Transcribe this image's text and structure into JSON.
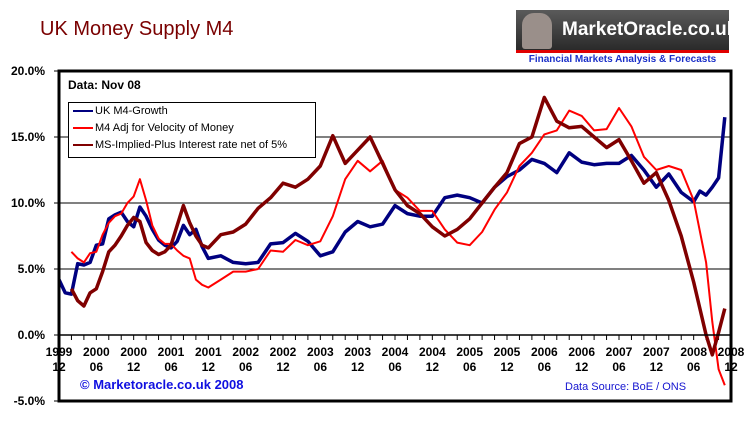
{
  "header": {
    "title": "UK Money Supply M4",
    "logo_text": "MarketOracle.co.uk",
    "logo_tagline": "Financial Markets Analysis & Forecasts"
  },
  "annotations": {
    "data_note": "Data: Nov 08",
    "copyright": "© Marketoracle.co.uk 2008",
    "source": "Data Source: BoE / ONS"
  },
  "colors": {
    "uk_m4": "#000080",
    "m4_adj": "#ff0000",
    "ms_implied": "#800000",
    "title": "#7a0000"
  },
  "chart_data": {
    "type": "line",
    "title": "UK Money Supply M4",
    "ylim": [
      -5,
      20
    ],
    "yticks": [
      "20.0%",
      "15.0%",
      "10.0%",
      "5.0%",
      "0.0%",
      "-5.0%"
    ],
    "ytick_values": [
      20,
      15,
      10,
      5,
      0,
      -5
    ],
    "xrange_months": [
      0,
      108
    ],
    "xticks": [
      {
        "top": "1999",
        "bottom": "12",
        "m": 0
      },
      {
        "top": "2000",
        "bottom": "06",
        "m": 6
      },
      {
        "top": "2000",
        "bottom": "12",
        "m": 12
      },
      {
        "top": "2001",
        "bottom": "06",
        "m": 18
      },
      {
        "top": "2001",
        "bottom": "12",
        "m": 24
      },
      {
        "top": "2002",
        "bottom": "06",
        "m": 30
      },
      {
        "top": "2002",
        "bottom": "12",
        "m": 36
      },
      {
        "top": "2003",
        "bottom": "06",
        "m": 42
      },
      {
        "top": "2003",
        "bottom": "12",
        "m": 48
      },
      {
        "top": "2004",
        "bottom": "06",
        "m": 54
      },
      {
        "top": "2004",
        "bottom": "12",
        "m": 60
      },
      {
        "top": "2005",
        "bottom": "06",
        "m": 66
      },
      {
        "top": "2005",
        "bottom": "12",
        "m": 72
      },
      {
        "top": "2006",
        "bottom": "06",
        "m": 78
      },
      {
        "top": "2006",
        "bottom": "12",
        "m": 84
      },
      {
        "top": "2007",
        "bottom": "06",
        "m": 90
      },
      {
        "top": "2007",
        "bottom": "12",
        "m": 96
      },
      {
        "top": "2008",
        "bottom": "06",
        "m": 102
      },
      {
        "top": "2008",
        "bottom": "12",
        "m": 108
      }
    ],
    "grid": true,
    "legend_position": "top-left",
    "series": [
      {
        "name": "UK M4-Growth",
        "color": "#000080",
        "x": [
          0,
          1,
          2,
          3,
          4,
          5,
          6,
          7,
          8,
          9,
          10,
          11,
          12,
          13,
          14,
          15,
          16,
          17,
          18,
          19,
          20,
          21,
          22,
          23,
          24,
          26,
          28,
          30,
          32,
          34,
          36,
          38,
          40,
          42,
          44,
          46,
          48,
          50,
          52,
          54,
          56,
          58,
          60,
          62,
          64,
          66,
          68,
          70,
          72,
          74,
          76,
          78,
          80,
          82,
          84,
          86,
          88,
          90,
          92,
          94,
          96,
          98,
          100,
          102,
          103,
          104,
          105,
          106,
          107
        ],
        "y": [
          4.2,
          3.2,
          3.1,
          5.4,
          5.3,
          5.5,
          6.8,
          6.9,
          8.8,
          9.1,
          9.3,
          8.6,
          8.2,
          9.7,
          9.0,
          8.0,
          7.2,
          6.8,
          6.6,
          7.1,
          8.3,
          7.6,
          8.0,
          6.7,
          5.8,
          6.0,
          5.5,
          5.4,
          5.5,
          6.9,
          7.0,
          7.7,
          7.1,
          6.0,
          6.3,
          7.8,
          8.6,
          8.2,
          8.4,
          9.8,
          9.2,
          9.0,
          9.0,
          10.4,
          10.6,
          10.4,
          10.0,
          11.2,
          12.0,
          12.5,
          13.3,
          13.0,
          12.3,
          13.8,
          13.1,
          12.9,
          13.0,
          13.0,
          13.6,
          12.5,
          11.2,
          12.2,
          10.8,
          10.1,
          10.9,
          10.6,
          11.2,
          11.9,
          16.5
        ]
      },
      {
        "name": "M4 Adj for Velocity of Money",
        "color": "#ff0000",
        "x": [
          2,
          3,
          4,
          5,
          6,
          7,
          8,
          9,
          10,
          11,
          12,
          13,
          14,
          15,
          16,
          17,
          18,
          19,
          20,
          21,
          22,
          23,
          24,
          26,
          28,
          30,
          32,
          34,
          36,
          38,
          40,
          42,
          44,
          46,
          48,
          50,
          52,
          54,
          56,
          58,
          60,
          62,
          64,
          66,
          68,
          70,
          72,
          74,
          76,
          78,
          80,
          82,
          84,
          86,
          88,
          90,
          92,
          94,
          96,
          98,
          100,
          102,
          104,
          105,
          106,
          107
        ],
        "y": [
          6.3,
          5.8,
          5.5,
          6.2,
          6.3,
          7.6,
          8.5,
          9.0,
          9.2,
          10.0,
          10.5,
          11.8,
          10.2,
          8.3,
          7.3,
          6.9,
          6.9,
          6.4,
          6.0,
          5.8,
          4.2,
          3.8,
          3.6,
          4.2,
          4.8,
          4.8,
          5.0,
          6.4,
          6.3,
          7.2,
          6.8,
          7.1,
          9.0,
          11.8,
          13.2,
          12.4,
          13.2,
          11.0,
          10.4,
          9.4,
          9.4,
          8.0,
          7.0,
          6.8,
          7.8,
          9.5,
          10.8,
          12.8,
          13.8,
          15.2,
          15.5,
          17.0,
          16.6,
          15.5,
          15.6,
          17.2,
          15.8,
          13.5,
          12.5,
          12.8,
          12.5,
          10.2,
          5.5,
          1.0,
          -2.6,
          -3.8
        ]
      },
      {
        "name": "MS-Implied-Plus Interest rate net of 5%",
        "color": "#800000",
        "x": [
          2,
          3,
          4,
          5,
          6,
          7,
          8,
          9,
          10,
          11,
          12,
          13,
          14,
          15,
          16,
          17,
          18,
          19,
          20,
          21,
          22,
          23,
          24,
          26,
          28,
          30,
          32,
          34,
          36,
          38,
          40,
          42,
          44,
          46,
          48,
          50,
          52,
          54,
          56,
          58,
          60,
          62,
          64,
          66,
          68,
          70,
          72,
          74,
          76,
          78,
          80,
          82,
          84,
          86,
          88,
          90,
          92,
          94,
          96,
          98,
          100,
          102,
          103,
          104,
          105,
          106,
          107
        ],
        "y": [
          3.5,
          2.6,
          2.2,
          3.2,
          3.5,
          4.8,
          6.3,
          6.8,
          7.5,
          8.3,
          8.9,
          8.6,
          7.0,
          6.4,
          6.1,
          6.3,
          6.8,
          8.3,
          9.8,
          8.5,
          7.5,
          6.8,
          6.6,
          7.6,
          7.8,
          8.4,
          9.6,
          10.4,
          11.5,
          11.2,
          11.8,
          12.8,
          15.1,
          13.0,
          14.0,
          15.0,
          13.0,
          11.0,
          9.8,
          9.2,
          8.2,
          7.5,
          8.0,
          8.8,
          10.0,
          11.2,
          12.3,
          14.5,
          15.0,
          18.0,
          16.2,
          15.7,
          15.8,
          15.0,
          14.2,
          14.8,
          13.2,
          11.5,
          12.3,
          10.2,
          7.5,
          4.0,
          2.0,
          0.0,
          -1.5,
          0.2,
          2.0
        ]
      }
    ]
  }
}
